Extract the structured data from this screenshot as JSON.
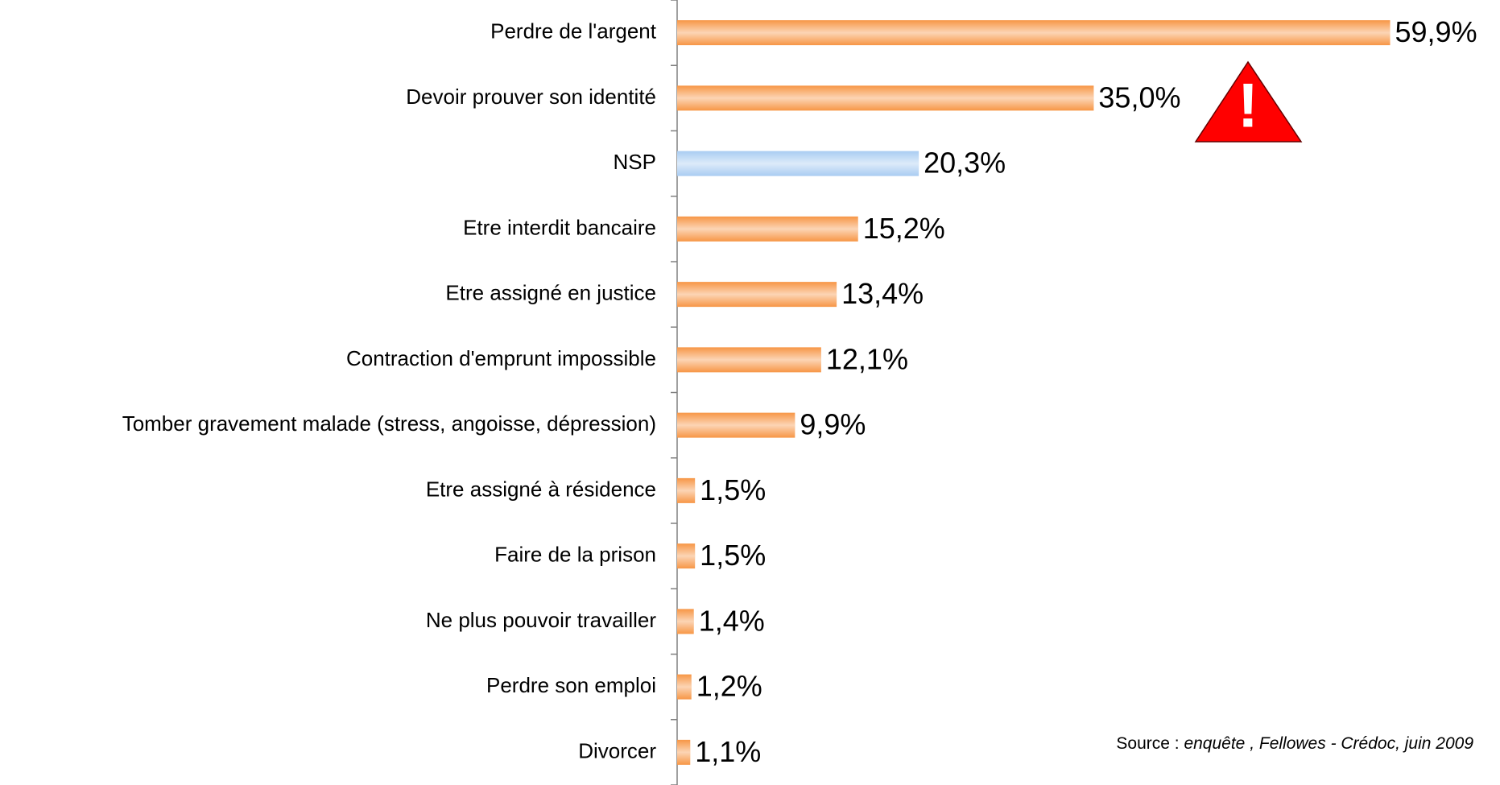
{
  "chart_data": {
    "type": "barh",
    "categories": [
      "Perdre de l'argent",
      "Devoir prouver son identité",
      "NSP",
      "Etre interdit bancaire",
      "Etre assigné en justice",
      "Contraction d'emprunt impossible",
      "Tomber gravement malade (stress, angoisse, dépression)",
      "Etre assigné à résidence",
      "Faire de la prison",
      "Ne plus pouvoir travailler",
      "Perdre son emploi",
      "Divorcer"
    ],
    "values": [
      59.9,
      35.0,
      20.3,
      15.2,
      13.4,
      12.1,
      9.9,
      1.5,
      1.5,
      1.4,
      1.2,
      1.1
    ],
    "value_labels": [
      "59,9%",
      "35,0%",
      "20,3%",
      "15,2%",
      "13,4%",
      "12,1%",
      "9,9%",
      "1,5%",
      "1,5%",
      "1,4%",
      "1,2%",
      "1,1%"
    ],
    "colors": [
      "#f79646",
      "#f79646",
      "#a9ccf2",
      "#f79646",
      "#f79646",
      "#f79646",
      "#f79646",
      "#f79646",
      "#f79646",
      "#f79646",
      "#f79646",
      "#f79646"
    ],
    "xlim": [
      0,
      60
    ],
    "annotation": "!",
    "source": {
      "prefix": "Source : ",
      "text": "enquête , Fellowes - Crédoc, juin 2009"
    }
  }
}
